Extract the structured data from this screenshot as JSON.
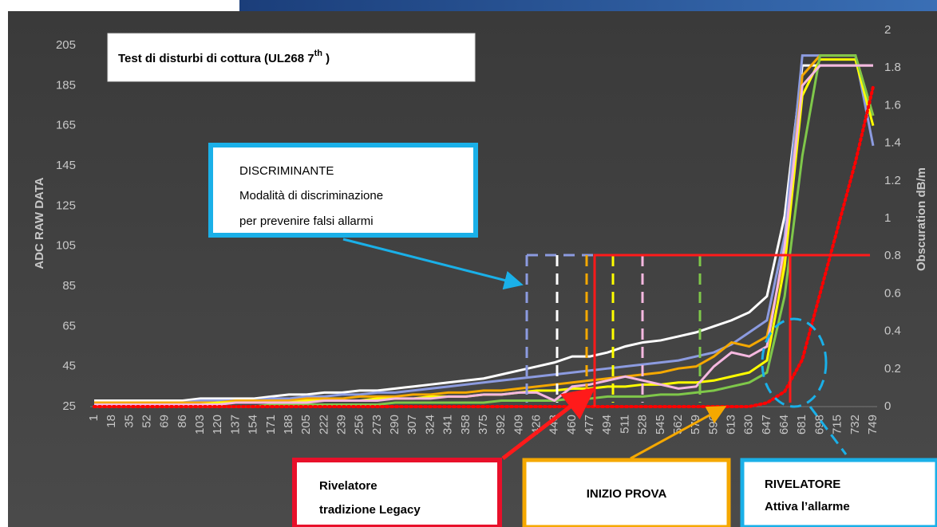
{
  "chart_data": {
    "type": "line",
    "title": "Test di disturbi di cottura (UL268 7",
    "title_sup": "th",
    "title_end": " )",
    "ylabel": "ADC RAW DATA",
    "y2label": "Obscuration  dB/m",
    "categories": [
      "1",
      "18",
      "35",
      "52",
      "69",
      "86",
      "103",
      "120",
      "137",
      "154",
      "171",
      "188",
      "205",
      "222",
      "239",
      "256",
      "273",
      "290",
      "307",
      "324",
      "341",
      "358",
      "375",
      "392",
      "409",
      "426",
      "443",
      "460",
      "477",
      "494",
      "511",
      "528",
      "545",
      "562",
      "579",
      "596",
      "613",
      "630",
      "647",
      "664",
      "681",
      "698",
      "715",
      "732",
      "749"
    ],
    "ylim": [
      25,
      205
    ],
    "yticks": [
      25,
      45,
      65,
      85,
      105,
      125,
      145,
      165,
      185,
      205
    ],
    "y2lim": [
      0,
      2
    ],
    "y2ticks": [
      0,
      0.2,
      0.4,
      0.6,
      0.8,
      1,
      1.2,
      1.4,
      1.6,
      1.8,
      2
    ],
    "series": [
      {
        "color": "#ffffff",
        "values": [
          28,
          28,
          28,
          28,
          28,
          28,
          29,
          29,
          29,
          29,
          30,
          31,
          31,
          32,
          32,
          33,
          33,
          34,
          35,
          36,
          37,
          38,
          39,
          41,
          43,
          45,
          47,
          50,
          50,
          52,
          55,
          57,
          58,
          60,
          62,
          65,
          68,
          72,
          80,
          120,
          195,
          195,
          195,
          195,
          195
        ]
      },
      {
        "color": "#8c9be0",
        "values": [
          27,
          27,
          27,
          27,
          27,
          27,
          28,
          28,
          28,
          28,
          29,
          29,
          30,
          30,
          31,
          31,
          32,
          32,
          33,
          34,
          35,
          36,
          37,
          38,
          39,
          40,
          41,
          42,
          43,
          44,
          45,
          46,
          47,
          48,
          50,
          52,
          56,
          62,
          68,
          110,
          200,
          200,
          200,
          200,
          155
        ]
      },
      {
        "color": "#f5a800",
        "values": [
          27,
          27,
          27,
          27,
          27,
          27,
          27,
          27,
          28,
          28,
          28,
          28,
          29,
          29,
          29,
          30,
          30,
          30,
          31,
          31,
          32,
          32,
          33,
          33,
          34,
          35,
          36,
          37,
          38,
          39,
          40,
          41,
          42,
          44,
          45,
          50,
          57,
          55,
          60,
          100,
          190,
          200,
          200,
          200,
          170
        ]
      },
      {
        "color": "#ffff00",
        "values": [
          26,
          26,
          26,
          26,
          26,
          26,
          26,
          27,
          27,
          27,
          27,
          27,
          28,
          28,
          28,
          28,
          29,
          29,
          29,
          30,
          30,
          30,
          31,
          31,
          32,
          33,
          33,
          34,
          34,
          35,
          35,
          36,
          36,
          37,
          37,
          38,
          40,
          42,
          48,
          95,
          180,
          198,
          198,
          198,
          165
        ]
      },
      {
        "color": "#7fc74a",
        "values": [
          25,
          25,
          25,
          25,
          25,
          25,
          25,
          25,
          25,
          25,
          26,
          26,
          26,
          26,
          26,
          26,
          26,
          27,
          27,
          27,
          27,
          27,
          27,
          28,
          28,
          28,
          28,
          29,
          29,
          30,
          30,
          30,
          31,
          31,
          32,
          33,
          35,
          37,
          42,
          80,
          150,
          200,
          200,
          200,
          170
        ]
      },
      {
        "color": "#f5b8e0",
        "values": [
          26,
          26,
          26,
          26,
          26,
          26,
          26,
          26,
          27,
          27,
          27,
          27,
          27,
          28,
          28,
          28,
          28,
          29,
          29,
          29,
          30,
          30,
          31,
          31,
          32,
          32,
          28,
          35,
          36,
          38,
          40,
          38,
          36,
          34,
          35,
          45,
          52,
          50,
          55,
          105,
          185,
          195,
          195,
          195,
          195
        ]
      },
      {
        "color": "#ff0000",
        "axis": "y2",
        "values": [
          0,
          0,
          0,
          0,
          0,
          0,
          0,
          0,
          0,
          0,
          0,
          0,
          0,
          0,
          0,
          0,
          0,
          0,
          0,
          0,
          0,
          0,
          0,
          0,
          0,
          0,
          0,
          0,
          0,
          0,
          0,
          0,
          0,
          0,
          0,
          0,
          0,
          0,
          0.02,
          0.08,
          0.25,
          0.6,
          0.95,
          1.3,
          1.7
        ]
      }
    ],
    "annotation": [
      "DISCRIMINANTE",
      "Modalità di discriminazione",
      "per prevenire falsi allarmi"
    ],
    "box_legacy": [
      "Rivelatore",
      "tradizione Legacy"
    ],
    "box_start": "INIZIO PROVA",
    "box_alarm": [
      "RIVELATORE",
      "Attiva l’allarme"
    ]
  }
}
